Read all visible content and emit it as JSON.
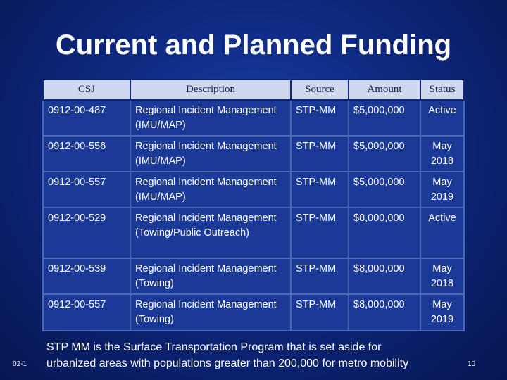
{
  "header": {
    "title": "Current and Planned Funding"
  },
  "table": {
    "columns": [
      "CSJ",
      "Description",
      "Source",
      "Amount",
      "Status"
    ],
    "rows": [
      [
        "0912-00-487",
        "Regional Incident Management (IMU/MAP)",
        "STP-MM",
        "$5,000,000",
        "Active"
      ],
      [
        "0912-00-556",
        "Regional Incident Management (IMU/MAP)",
        "STP-MM",
        "$5,000,000",
        "May 2018"
      ],
      [
        "0912-00-557",
        "Regional Incident Management (IMU/MAP)",
        "STP-MM",
        "$5,000,000",
        "May 2019"
      ],
      [
        "0912-00-529",
        "Regional Incident Management (Towing/Public Outreach)",
        "STP-MM",
        "$8,000,000",
        "Active"
      ],
      [
        "0912-00-539",
        "Regional Incident Management (Towing)",
        "STP-MM",
        "$8,000,000",
        "May 2018"
      ],
      [
        "0912-00-557",
        "Regional Incident Management (Towing)",
        "STP-MM",
        "$8,000,000",
        "May 2019"
      ]
    ]
  },
  "note": [
    "STP MM is the Surface Transportation Program that is set aside for",
    "urbanized areas with populations greater than 200,000 for metro mobility"
  ],
  "footer": {
    "date": "02-1",
    "page": "10"
  }
}
